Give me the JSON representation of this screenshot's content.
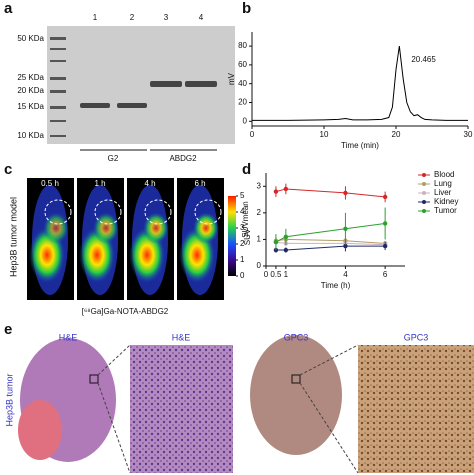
{
  "panel_labels": [
    "a",
    "b",
    "c",
    "d",
    "e"
  ],
  "gel": {
    "markers": [
      "50 KDa",
      "25 KDa",
      "20 KDa",
      "15 KDa",
      "10 KDa"
    ],
    "lanes": [
      "1",
      "2",
      "3",
      "4"
    ],
    "groups": [
      "G2",
      "ABDG2"
    ]
  },
  "pet": {
    "ylabel": "Hep3B tumor model",
    "times": [
      "0.5 h",
      "1 h",
      "4 h",
      "6 h"
    ],
    "caption": "[⁶⁸Ga]Ga-NOTA-ABDG2",
    "colorbar_label": "SUV",
    "colorbar_ticks": [
      0,
      1,
      2,
      3,
      4,
      5
    ]
  },
  "histology": {
    "row_label": "Hep3B tumor",
    "titles": [
      "H&E",
      "H&E",
      "GPC3",
      "GPC3"
    ]
  },
  "chart_data": [
    {
      "type": "line",
      "xlabel": "Time (min)",
      "ylabel": "mV",
      "annotation": "20.465",
      "x": [
        0,
        5,
        10,
        12,
        13,
        14,
        16,
        18,
        19,
        19.5,
        20,
        20.465,
        21,
        21.5,
        22,
        22.5,
        23,
        23.5,
        24,
        25,
        27,
        30
      ],
      "values": [
        1,
        1,
        1.5,
        2,
        3,
        1.5,
        1.5,
        2,
        4,
        15,
        55,
        80,
        45,
        20,
        10,
        6,
        7,
        4,
        2,
        1.5,
        1,
        1
      ],
      "color": "#000000",
      "xlim": [
        0,
        30
      ],
      "ylim": [
        -5,
        95
      ],
      "xticks": [
        0,
        10,
        20,
        30
      ],
      "yticks": [
        0,
        20,
        40,
        60,
        80
      ]
    },
    {
      "type": "line",
      "xlabel": "Time (h)",
      "ylabel": "SUVmean",
      "legend": "upper right",
      "x": [
        0.5,
        1,
        4,
        6
      ],
      "series": [
        {
          "name": "Blood",
          "color": "#d62728",
          "values": [
            2.8,
            2.9,
            2.75,
            2.6
          ],
          "errors": [
            0.2,
            0.2,
            0.25,
            0.2
          ]
        },
        {
          "name": "Lung",
          "color": "#b39b66",
          "values": [
            0.95,
            1.0,
            0.95,
            0.85
          ],
          "errors": [
            0.15,
            0.15,
            0.1,
            0.1
          ]
        },
        {
          "name": "Liver",
          "color": "#c9b3c0",
          "values": [
            0.9,
            0.85,
            0.85,
            0.8
          ],
          "errors": [
            0.1,
            0.1,
            0.1,
            0.1
          ]
        },
        {
          "name": "Kidney",
          "color": "#1f2a6b",
          "values": [
            0.6,
            0.6,
            0.75,
            0.75
          ],
          "errors": [
            0.1,
            0.1,
            0.2,
            0.15
          ]
        },
        {
          "name": "Tumor",
          "color": "#2ca02c",
          "values": [
            0.9,
            1.1,
            1.4,
            1.6
          ],
          "errors": [
            0.3,
            0.3,
            0.6,
            0.6
          ]
        }
      ],
      "xlim": [
        0,
        7
      ],
      "ylim": [
        0,
        3.5
      ],
      "xticks": [
        0,
        0.5,
        1,
        4,
        6
      ],
      "yticks": [
        0,
        1,
        2,
        3
      ]
    }
  ]
}
